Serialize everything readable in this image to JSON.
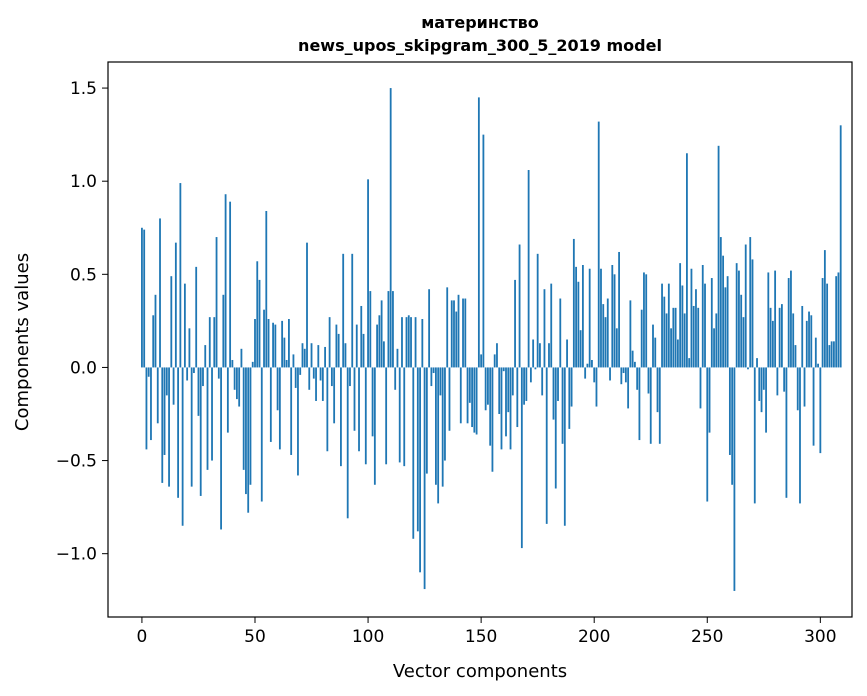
{
  "chart_data": {
    "type": "bar",
    "title_line1": "материнство",
    "title_line2": "news_upos_skipgram_300_5_2019 model",
    "xlabel": "Vector components",
    "ylabel": "Components values",
    "xlim": [
      -15,
      314
    ],
    "ylim": [
      -1.34,
      1.64
    ],
    "xticks": [
      0,
      50,
      100,
      150,
      200,
      250,
      300
    ],
    "xtick_labels": [
      "0",
      "50",
      "100",
      "150",
      "200",
      "250",
      "300"
    ],
    "yticks": [
      -1.0,
      -0.5,
      0.0,
      0.5,
      1.0,
      1.5
    ],
    "ytick_labels": [
      "−1.0",
      "−0.5",
      "0.0",
      "0.5",
      "1.0",
      "1.5"
    ],
    "bar_color": "#1f77b4",
    "grid": false,
    "values": [
      0.75,
      0.74,
      -0.44,
      -0.05,
      -0.39,
      0.28,
      0.39,
      -0.3,
      0.8,
      -0.62,
      -0.47,
      -0.15,
      -0.64,
      0.49,
      -0.2,
      0.67,
      -0.7,
      0.99,
      -0.85,
      0.45,
      -0.07,
      0.21,
      -0.64,
      -0.03,
      0.54,
      -0.26,
      -0.69,
      -0.1,
      0.12,
      -0.55,
      0.27,
      -0.5,
      0.27,
      0.7,
      -0.06,
      -0.87,
      0.39,
      0.93,
      -0.35,
      0.89,
      0.04,
      -0.12,
      -0.17,
      -0.21,
      0.1,
      -0.55,
      -0.68,
      -0.78,
      -0.63,
      0.03,
      0.26,
      0.57,
      0.47,
      -0.72,
      0.31,
      0.84,
      0.26,
      -0.4,
      0.24,
      0.23,
      -0.23,
      -0.44,
      0.25,
      0.16,
      0.04,
      0.26,
      -0.47,
      0.07,
      -0.11,
      -0.58,
      -0.04,
      0.13,
      0.1,
      0.67,
      -0.12,
      0.13,
      -0.06,
      -0.18,
      0.12,
      -0.07,
      -0.18,
      0.11,
      -0.45,
      0.27,
      -0.1,
      -0.3,
      0.23,
      0.18,
      -0.53,
      0.61,
      0.13,
      -0.81,
      -0.1,
      0.61,
      -0.34,
      0.23,
      -0.45,
      0.33,
      0.18,
      -0.52,
      1.01,
      0.41,
      -0.37,
      -0.63,
      0.23,
      0.28,
      0.36,
      0.14,
      -0.52,
      0.41,
      1.5,
      0.41,
      -0.12,
      0.1,
      -0.51,
      0.27,
      -0.53,
      0.27,
      0.28,
      0.27,
      -0.92,
      0.27,
      -0.88,
      -1.1,
      0.26,
      -1.19,
      -0.57,
      0.42,
      -0.1,
      -0.03,
      -0.63,
      -0.73,
      -0.15,
      -0.64,
      -0.5,
      0.43,
      -0.34,
      0.36,
      0.36,
      0.3,
      0.39,
      -0.3,
      0.37,
      0.37,
      -0.3,
      -0.19,
      -0.32,
      -0.35,
      -0.36,
      1.45,
      0.07,
      1.25,
      -0.23,
      -0.2,
      -0.42,
      -0.56,
      0.07,
      0.13,
      -0.25,
      -0.44,
      -0.02,
      -0.37,
      -0.24,
      -0.44,
      -0.15,
      0.47,
      -0.32,
      0.66,
      -0.97,
      -0.2,
      -0.18,
      1.06,
      -0.08,
      0.15,
      -0.01,
      0.61,
      0.13,
      -0.15,
      0.42,
      -0.84,
      0.13,
      0.45,
      -0.28,
      -0.65,
      -0.18,
      0.37,
      -0.41,
      -0.85,
      0.15,
      -0.33,
      -0.21,
      0.69,
      0.54,
      0.46,
      0.2,
      0.55,
      -0.06,
      0.02,
      0.53,
      0.04,
      -0.08,
      -0.21,
      1.32,
      0.53,
      0.34,
      0.27,
      0.37,
      -0.07,
      0.55,
      0.5,
      0.21,
      0.62,
      -0.09,
      -0.03,
      -0.08,
      -0.22,
      0.36,
      0.09,
      0.03,
      -0.12,
      -0.39,
      0.31,
      0.51,
      0.5,
      -0.14,
      -0.41,
      0.23,
      0.16,
      -0.24,
      -0.41,
      0.45,
      0.38,
      0.29,
      0.45,
      0.21,
      0.32,
      0.32,
      0.15,
      0.56,
      0.44,
      0.29,
      1.15,
      0.05,
      0.53,
      0.33,
      0.42,
      0.32,
      -0.22,
      0.55,
      0.45,
      -0.72,
      -0.35,
      0.48,
      0.21,
      0.29,
      1.19,
      0.7,
      0.6,
      0.43,
      0.49,
      -0.47,
      -0.63,
      -1.2,
      0.56,
      0.52,
      0.39,
      0.27,
      0.66,
      -0.01,
      0.7,
      0.58,
      -0.73,
      0.05,
      -0.18,
      -0.24,
      -0.12,
      -0.35,
      0.51,
      0.32,
      0.25,
      0.52,
      -0.15,
      0.32,
      0.34,
      -0.13,
      -0.7,
      0.48,
      0.52,
      0.29,
      0.12,
      -0.23,
      -0.73,
      0.33,
      -0.21,
      0.25,
      0.3,
      0.28,
      -0.42,
      0.16,
      0.02,
      -0.46,
      0.48,
      0.63,
      0.45,
      0.12,
      0.14,
      0.14,
      0.49,
      0.51,
      1.3
    ]
  }
}
